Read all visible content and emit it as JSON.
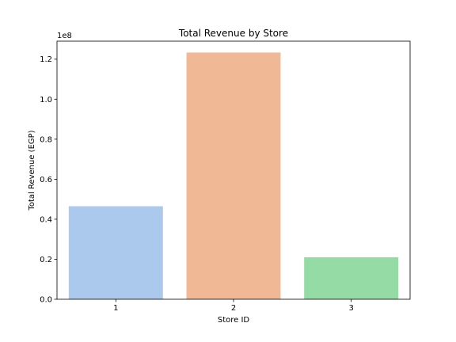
{
  "chart_data": {
    "type": "bar",
    "title": "Total Revenue by Store",
    "xlabel": "Store ID",
    "ylabel": "Total Revenue (EGP)",
    "y_offset_label": "1e8",
    "categories": [
      "1",
      "2",
      "3"
    ],
    "values": [
      46500000,
      123300000,
      21000000
    ],
    "colors": [
      "#abc9ed",
      "#f0b895",
      "#95dba5"
    ],
    "ylim": [
      0,
      129000000
    ],
    "yticks": [
      0,
      20000000,
      40000000,
      60000000,
      80000000,
      100000000,
      120000000
    ],
    "ytick_labels": [
      "0.0",
      "0.2",
      "0.4",
      "0.6",
      "0.8",
      "1.0",
      "1.2"
    ],
    "grid": false,
    "legend": false
  }
}
